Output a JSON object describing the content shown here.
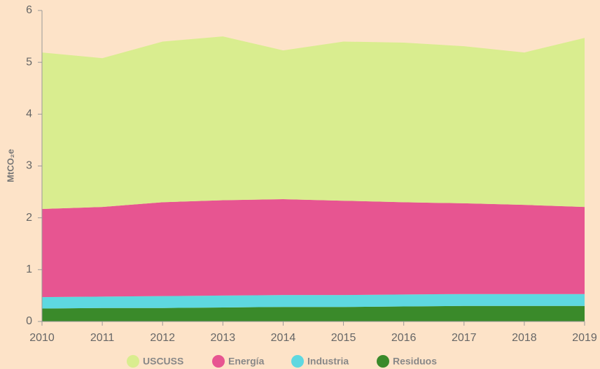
{
  "chart_data": {
    "type": "stacked_area",
    "ylabel": "MtCO₂e",
    "x": [
      2010,
      2011,
      2012,
      2013,
      2014,
      2015,
      2016,
      2017,
      2018,
      2019
    ],
    "xlim": [
      2010,
      2019
    ],
    "xticks": [
      2010,
      2011,
      2012,
      2013,
      2014,
      2015,
      2016,
      2017,
      2018,
      2019
    ],
    "ylim": [
      0,
      6
    ],
    "yticks": [
      0,
      1,
      2,
      3,
      4,
      5,
      6
    ],
    "legend": "bottom",
    "series": [
      {
        "name": "USCUSS",
        "color": "#d9ed8f",
        "values": [
          3.02,
          2.87,
          3.1,
          3.16,
          2.87,
          3.07,
          3.08,
          3.03,
          2.94,
          3.26
        ]
      },
      {
        "name": "Energía",
        "color": "#e75591",
        "values": [
          1.7,
          1.73,
          1.81,
          1.84,
          1.85,
          1.82,
          1.78,
          1.75,
          1.72,
          1.68
        ]
      },
      {
        "name": "Industria",
        "color": "#5ed8e0",
        "values": [
          0.22,
          0.22,
          0.23,
          0.23,
          0.23,
          0.23,
          0.23,
          0.23,
          0.23,
          0.23
        ]
      },
      {
        "name": "Residuos",
        "color": "#3a8a2a",
        "values": [
          0.25,
          0.26,
          0.26,
          0.27,
          0.28,
          0.28,
          0.29,
          0.3,
          0.3,
          0.3
        ]
      }
    ]
  }
}
